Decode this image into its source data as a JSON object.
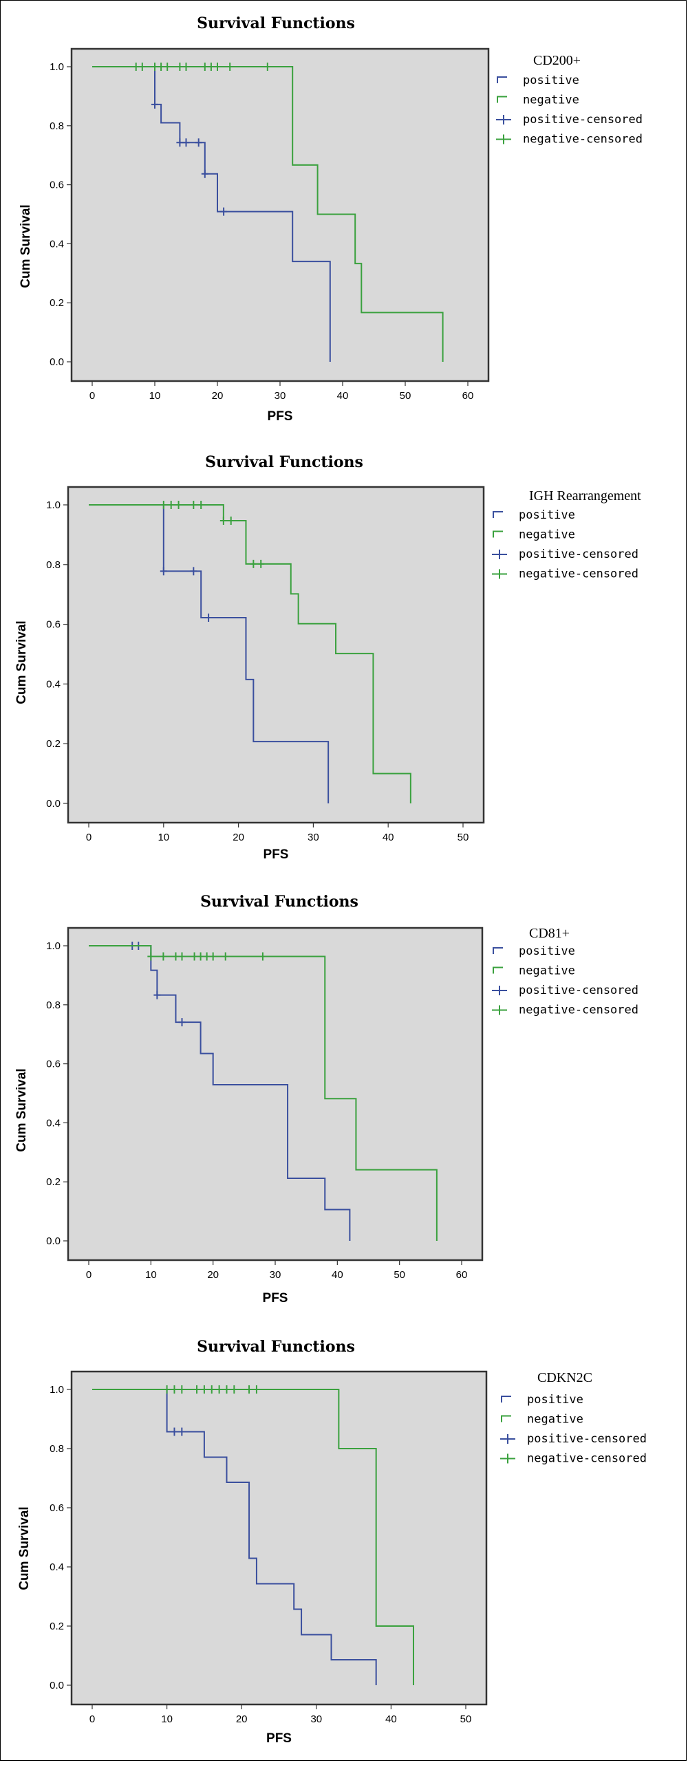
{
  "chart_data": [
    {
      "type": "line",
      "title": "Survival Functions",
      "xlabel": "PFS",
      "ylabel": "Cum Survival",
      "xlim": [
        0,
        60
      ],
      "ylim": [
        0,
        1
      ],
      "xticks": [
        0,
        10,
        20,
        30,
        40,
        50,
        60
      ],
      "yticks": [
        0.0,
        0.2,
        0.4,
        0.6,
        0.8,
        1.0
      ],
      "grid": false,
      "legend_title": "CD200+",
      "legend": [
        "positive",
        "negative",
        "positive-censored",
        "negative-censored"
      ],
      "series": [
        {
          "name": "positive",
          "color": "#3a4f9e",
          "steps": [
            [
              0,
              1.0
            ],
            [
              10,
              0.872
            ],
            [
              11,
              0.81
            ],
            [
              14,
              0.743
            ],
            [
              18,
              0.637
            ],
            [
              20,
              0.509
            ],
            [
              32,
              0.34
            ],
            [
              38,
              0.0
            ]
          ],
          "end": 38,
          "censored": [
            [
              10,
              0.872
            ],
            [
              14,
              0.743
            ],
            [
              15,
              0.743
            ],
            [
              17,
              0.743
            ],
            [
              18,
              0.637
            ],
            [
              21,
              0.509
            ]
          ]
        },
        {
          "name": "negative",
          "color": "#3aa13e",
          "steps": [
            [
              0,
              1.0
            ],
            [
              32,
              0.667
            ],
            [
              36,
              0.5
            ],
            [
              42,
              0.333
            ],
            [
              43,
              0.167
            ],
            [
              56,
              0.0
            ]
          ],
          "end": 56,
          "censored": [
            [
              7,
              1.0
            ],
            [
              8,
              1.0
            ],
            [
              10,
              1.0
            ],
            [
              11,
              1.0
            ],
            [
              12,
              1.0
            ],
            [
              14,
              1.0
            ],
            [
              15,
              1.0
            ],
            [
              18,
              1.0
            ],
            [
              19,
              1.0
            ],
            [
              20,
              1.0
            ],
            [
              22,
              1.0
            ],
            [
              28,
              1.0
            ]
          ]
        }
      ]
    },
    {
      "type": "line",
      "title": "Survival Functions",
      "xlabel": "PFS",
      "ylabel": "Cum Survival",
      "xlim": [
        0,
        50
      ],
      "ylim": [
        0,
        1
      ],
      "xticks": [
        0,
        10,
        20,
        30,
        40,
        50
      ],
      "yticks": [
        0.0,
        0.2,
        0.4,
        0.6,
        0.8,
        1.0
      ],
      "grid": false,
      "legend_title": "IGH Rearrangement",
      "legend": [
        "positive",
        "negative",
        "positive-censored",
        "negative-censored"
      ],
      "series": [
        {
          "name": "positive",
          "color": "#3a4f9e",
          "steps": [
            [
              0,
              1.0
            ],
            [
              10,
              0.778
            ],
            [
              15,
              0.622
            ],
            [
              21,
              0.415
            ],
            [
              22,
              0.207
            ],
            [
              32,
              0.0
            ]
          ],
          "end": 32,
          "censored": [
            [
              10,
              0.778
            ],
            [
              14,
              0.778
            ],
            [
              16,
              0.622
            ]
          ]
        },
        {
          "name": "negative",
          "color": "#3aa13e",
          "steps": [
            [
              0,
              1.0
            ],
            [
              18,
              0.947
            ],
            [
              21,
              0.802
            ],
            [
              27,
              0.702
            ],
            [
              28,
              0.602
            ],
            [
              33,
              0.502
            ],
            [
              38,
              0.1
            ],
            [
              43,
              0.0
            ]
          ],
          "end": 43,
          "censored": [
            [
              10,
              1.0
            ],
            [
              11,
              1.0
            ],
            [
              12,
              1.0
            ],
            [
              14,
              1.0
            ],
            [
              15,
              1.0
            ],
            [
              18,
              0.947
            ],
            [
              19,
              0.947
            ],
            [
              22,
              0.802
            ],
            [
              23,
              0.802
            ]
          ]
        }
      ]
    },
    {
      "type": "line",
      "title": "Survival Functions",
      "xlabel": "PFS",
      "ylabel": "Cum Survival",
      "xlim": [
        0,
        60
      ],
      "ylim": [
        0,
        1
      ],
      "xticks": [
        0,
        10,
        20,
        30,
        40,
        50,
        60
      ],
      "yticks": [
        0.0,
        0.2,
        0.4,
        0.6,
        0.8,
        1.0
      ],
      "grid": false,
      "legend_title": "CD81+",
      "legend": [
        "positive",
        "negative",
        "positive-censored",
        "negative-censored"
      ],
      "series": [
        {
          "name": "positive",
          "color": "#3a4f9e",
          "steps": [
            [
              0,
              1.0
            ],
            [
              10,
              0.917
            ],
            [
              11,
              0.833
            ],
            [
              14,
              0.741
            ],
            [
              18,
              0.635
            ],
            [
              20,
              0.529
            ],
            [
              32,
              0.212
            ],
            [
              38,
              0.106
            ],
            [
              42,
              0.0
            ]
          ],
          "end": 42,
          "censored": [
            [
              7,
              1.0
            ],
            [
              8,
              1.0
            ],
            [
              11,
              0.833
            ],
            [
              15,
              0.741
            ]
          ]
        },
        {
          "name": "negative",
          "color": "#3aa13e",
          "steps": [
            [
              0,
              1.0
            ],
            [
              10,
              0.964
            ],
            [
              38,
              0.482
            ],
            [
              43,
              0.241
            ],
            [
              56,
              0.0
            ]
          ],
          "end": 56,
          "censored": [
            [
              10,
              0.964
            ],
            [
              12,
              0.964
            ],
            [
              14,
              0.964
            ],
            [
              15,
              0.964
            ],
            [
              17,
              0.964
            ],
            [
              18,
              0.964
            ],
            [
              19,
              0.964
            ],
            [
              20,
              0.964
            ],
            [
              22,
              0.964
            ],
            [
              28,
              0.964
            ]
          ]
        }
      ]
    },
    {
      "type": "line",
      "title": "Survival Functions",
      "xlabel": "PFS",
      "ylabel": "Cum Survival",
      "xlim": [
        0,
        50
      ],
      "ylim": [
        0,
        1
      ],
      "xticks": [
        0,
        10,
        20,
        30,
        40,
        50
      ],
      "yticks": [
        0.0,
        0.2,
        0.4,
        0.6,
        0.8,
        1.0
      ],
      "grid": false,
      "legend_title": "CDKN2C",
      "legend": [
        "positive",
        "negative",
        "positive-censored",
        "negative-censored"
      ],
      "series": [
        {
          "name": "positive",
          "color": "#3a4f9e",
          "steps": [
            [
              0,
              1.0
            ],
            [
              10,
              0.857
            ],
            [
              15,
              0.771
            ],
            [
              18,
              0.686
            ],
            [
              21,
              0.429
            ],
            [
              22,
              0.343
            ],
            [
              27,
              0.257
            ],
            [
              28,
              0.171
            ],
            [
              32,
              0.086
            ],
            [
              38,
              0.0
            ]
          ],
          "end": 38,
          "censored": [
            [
              11,
              0.857
            ],
            [
              12,
              0.857
            ]
          ]
        },
        {
          "name": "negative",
          "color": "#3aa13e",
          "steps": [
            [
              0,
              1.0
            ],
            [
              33,
              0.8
            ],
            [
              38,
              0.2
            ],
            [
              43,
              0.0
            ]
          ],
          "end": 43,
          "censored": [
            [
              10,
              1.0
            ],
            [
              11,
              1.0
            ],
            [
              12,
              1.0
            ],
            [
              14,
              1.0
            ],
            [
              15,
              1.0
            ],
            [
              16,
              1.0
            ],
            [
              17,
              1.0
            ],
            [
              18,
              1.0
            ],
            [
              19,
              1.0
            ],
            [
              21,
              1.0
            ],
            [
              22,
              1.0
            ]
          ]
        }
      ]
    }
  ]
}
